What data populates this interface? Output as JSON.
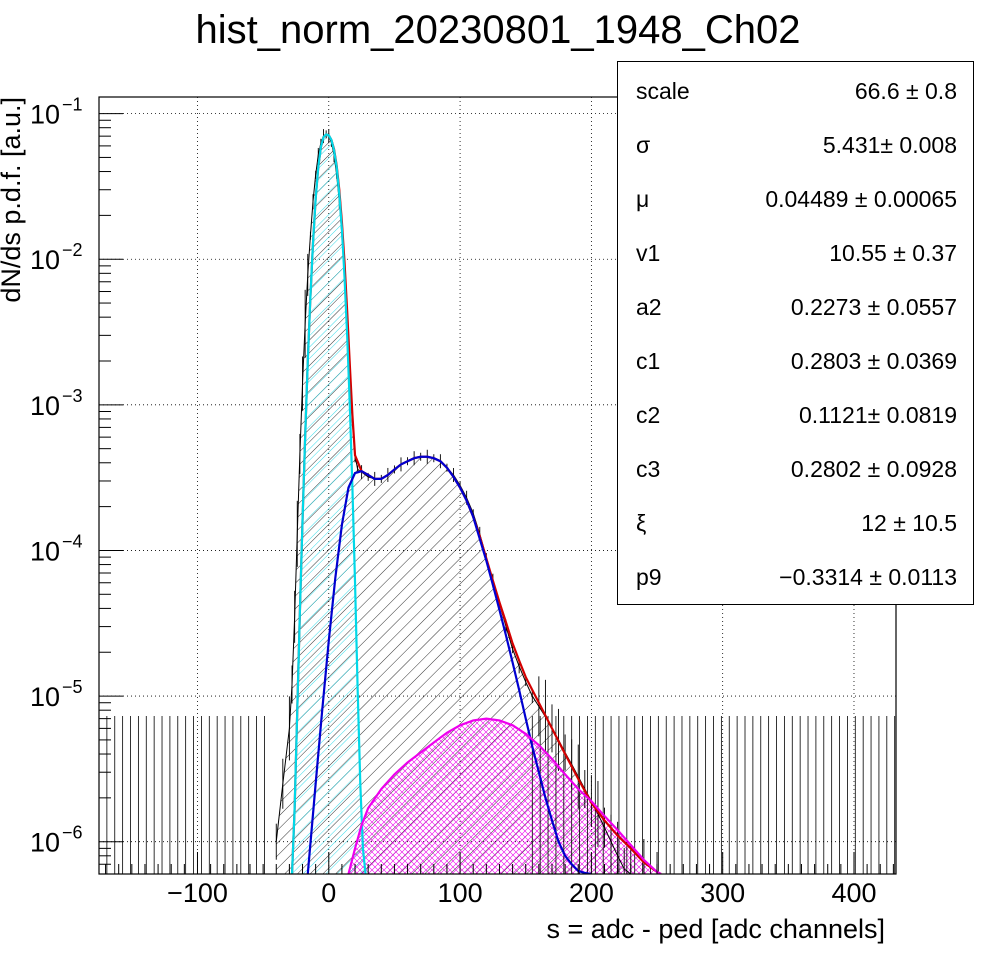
{
  "title": "hist_norm_20230801_1948_Ch02",
  "chart_data": {
    "type": "histogram",
    "title": "hist_norm_20230801_1948_Ch02",
    "xlabel": "s = adc - ped [adc channels]",
    "ylabel": "dN/ds p.d.f. [a.u.]",
    "xlim": [
      -175,
      432
    ],
    "ylim": [
      6e-07,
      0.13
    ],
    "y_scale": "log",
    "grid": true,
    "x_ticks": [
      {
        "value": -100,
        "label": "−100"
      },
      {
        "value": 0,
        "label": "0"
      },
      {
        "value": 100,
        "label": "100"
      },
      {
        "value": 200,
        "label": "200"
      },
      {
        "value": 300,
        "label": "300"
      },
      {
        "value": 400,
        "label": "400"
      }
    ],
    "y_ticks": [
      {
        "value": 1e-06,
        "base": "10",
        "exp": "−6"
      },
      {
        "value": 1e-05,
        "base": "10",
        "exp": "−5"
      },
      {
        "value": 0.0001,
        "base": "10",
        "exp": "−4"
      },
      {
        "value": 0.001,
        "base": "10",
        "exp": "−3"
      },
      {
        "value": 0.01,
        "base": "10",
        "exp": "−2"
      },
      {
        "value": 0.1,
        "base": "10",
        "exp": "−1"
      }
    ],
    "histogram": {
      "color": "#000000",
      "x": [
        -40,
        -35,
        -30,
        -28,
        -26,
        -24,
        -22,
        -20,
        -18,
        -16,
        -14,
        -12,
        -10,
        -8,
        -6,
        -4,
        -2,
        0,
        2,
        4,
        6,
        8,
        10,
        12,
        14,
        16,
        18,
        20,
        22,
        25,
        30,
        35,
        40,
        45,
        50,
        55,
        60,
        65,
        70,
        75,
        80,
        85,
        90,
        95,
        100,
        105,
        110,
        115,
        120,
        125,
        130,
        135,
        140,
        145,
        150,
        155,
        160,
        165,
        170,
        175,
        180,
        185,
        190,
        195,
        200,
        205,
        210,
        215,
        220,
        225,
        230,
        240,
        250
      ],
      "y": [
        1e-06,
        2.5e-06,
        6e-06,
        1.2e-05,
        3.5e-05,
        0.00013,
        0.00046,
        0.0014,
        0.0036,
        0.0078,
        0.0145,
        0.025,
        0.038,
        0.052,
        0.063,
        0.07,
        0.072,
        0.07,
        0.063,
        0.052,
        0.038,
        0.025,
        0.0145,
        0.0078,
        0.0036,
        0.0014,
        0.00075,
        0.00045,
        0.00036,
        0.000345,
        0.00032,
        0.00031,
        0.00031,
        0.00033,
        0.00036,
        0.00039,
        0.00041,
        0.00043,
        0.00044,
        0.00044,
        0.00043,
        0.00041,
        0.00037,
        0.00033,
        0.00028,
        0.00023,
        0.00018,
        0.00013,
        9e-05,
        6.2e-05,
        4.3e-05,
        3e-05,
        2.1e-05,
        1.6e-05,
        1.25e-05,
        1e-05,
        8.5e-06,
        7.2e-06,
        6e-06,
        5e-06,
        4.1e-06,
        3.4e-06,
        2.8e-06,
        2.3e-06,
        1.9e-06,
        1.55e-06,
        1.25e-06,
        1e-06,
        8e-07,
        6.5e-07,
        6e-07,
        6e-07,
        6e-07
      ]
    },
    "curves": [
      {
        "color": "#d40000",
        "x": [
          -28,
          -26,
          -24,
          -22,
          -20,
          -18,
          -16,
          -14,
          -12,
          -10,
          -8,
          -6,
          -4,
          -2,
          0,
          2,
          4,
          6,
          8,
          10,
          12,
          14,
          16,
          18,
          20,
          25,
          30,
          35,
          40,
          45,
          50,
          55,
          60,
          65,
          70,
          75,
          80,
          85,
          90,
          95,
          100,
          105,
          110,
          115,
          120,
          125,
          130,
          135,
          140,
          145,
          150,
          155,
          160,
          170,
          180,
          190,
          200,
          210,
          220,
          230,
          240,
          250,
          253
        ],
        "y": [
          6e-07,
          1.7e-06,
          8e-06,
          3.8e-05,
          0.00016,
          0.0006,
          0.002,
          0.0055,
          0.013,
          0.026,
          0.043,
          0.059,
          0.069,
          0.072,
          0.071,
          0.066,
          0.057,
          0.044,
          0.03,
          0.018,
          0.0095,
          0.0044,
          0.0019,
          0.00085,
          0.00045,
          0.00035,
          0.00033,
          0.00031,
          0.00031,
          0.00033,
          0.00036,
          0.00039,
          0.00041,
          0.00043,
          0.00044,
          0.00044,
          0.00043,
          0.00041,
          0.00037,
          0.00032,
          0.00027,
          0.00022,
          0.00017,
          0.000125,
          8.8e-05,
          6.2e-05,
          4.4e-05,
          3.2e-05,
          2.3e-05,
          1.75e-05,
          1.35e-05,
          1.1e-05,
          9e-06,
          6e-06,
          4e-06,
          2.7e-06,
          1.85e-06,
          1.4e-06,
          1.1e-06,
          9e-07,
          7.2e-07,
          6.2e-07,
          6e-07
        ]
      },
      {
        "color": "#00d8e8",
        "x": [
          -28,
          -26,
          -24,
          -22,
          -20,
          -18,
          -16,
          -14,
          -12,
          -10,
          -8,
          -6,
          -4,
          -2,
          0,
          2,
          4,
          6,
          8,
          10,
          12,
          14,
          16,
          18,
          20,
          22,
          24,
          26,
          28
        ],
        "y": [
          6e-07,
          1.7e-06,
          8e-06,
          3.8e-05,
          0.00016,
          0.0006,
          0.002,
          0.0055,
          0.013,
          0.026,
          0.043,
          0.059,
          0.069,
          0.072,
          0.071,
          0.066,
          0.056,
          0.043,
          0.028,
          0.016,
          0.0075,
          0.003,
          0.001,
          0.00027,
          6e-05,
          1.1e-05,
          2.5e-06,
          9e-07,
          6e-07
        ]
      },
      {
        "color": "#0000d0",
        "x": [
          -16,
          -10,
          -5,
          0,
          5,
          10,
          15,
          20,
          25,
          30,
          35,
          40,
          45,
          50,
          55,
          60,
          65,
          70,
          75,
          80,
          85,
          90,
          95,
          100,
          105,
          110,
          115,
          120,
          125,
          130,
          135,
          140,
          145,
          150,
          155,
          160,
          165,
          170,
          175,
          180,
          185,
          190,
          195,
          200
        ],
        "y": [
          6e-07,
          2.5e-06,
          8e-06,
          2.4e-05,
          6.5e-05,
          0.00015,
          0.00027,
          0.00034,
          0.00035,
          0.00033,
          0.00031,
          0.00031,
          0.00033,
          0.00036,
          0.00039,
          0.00041,
          0.00043,
          0.00044,
          0.00044,
          0.00043,
          0.00041,
          0.00037,
          0.00032,
          0.00027,
          0.00022,
          0.00017,
          0.00012,
          8.5e-05,
          5.8e-05,
          3.9e-05,
          2.6e-05,
          1.7e-05,
          1.1e-05,
          7e-06,
          4.5e-06,
          3e-06,
          2e-06,
          1.4e-06,
          1e-06,
          8e-07,
          7e-07,
          6.3e-07,
          6.1e-07,
          6e-07
        ]
      },
      {
        "color": "#ee00ee",
        "x": [
          15,
          20,
          25,
          30,
          40,
          50,
          60,
          70,
          80,
          90,
          100,
          110,
          120,
          130,
          140,
          150,
          160,
          170,
          180,
          190,
          200,
          210,
          220,
          230,
          240,
          250,
          253
        ],
        "y": [
          6e-07,
          9e-07,
          1.3e-06,
          1.7e-06,
          2.3e-06,
          2.9e-06,
          3.5e-06,
          4.1e-06,
          4.8e-06,
          5.6e-06,
          6.3e-06,
          6.8e-06,
          7e-06,
          6.8e-06,
          6.3e-06,
          5.5e-06,
          4.6e-06,
          3.7e-06,
          2.9e-06,
          2.3e-06,
          1.9e-06,
          1.5e-06,
          1.2e-06,
          9.5e-07,
          7.5e-07,
          6.2e-07,
          6e-07
        ]
      }
    ],
    "fit_parameters": [
      {
        "name": "scale",
        "value": "66.6 ± 0.8"
      },
      {
        "name": "σ",
        "value": "5.431± 0.008"
      },
      {
        "name": "μ",
        "value": "0.04489 ± 0.00065"
      },
      {
        "name": "v1",
        "value": "10.55 ± 0.37"
      },
      {
        "name": "a2",
        "value": "0.2273 ± 0.0557"
      },
      {
        "name": "c1",
        "value": "0.2803 ± 0.0369"
      },
      {
        "name": "c2",
        "value": "0.1121± 0.0819"
      },
      {
        "name": "c3",
        "value": "0.2802 ± 0.0928"
      },
      {
        "name": "ξ",
        "value": "12 ± 10.5"
      },
      {
        "name": "p9",
        "value": "−0.3314 ± 0.0113"
      }
    ]
  }
}
